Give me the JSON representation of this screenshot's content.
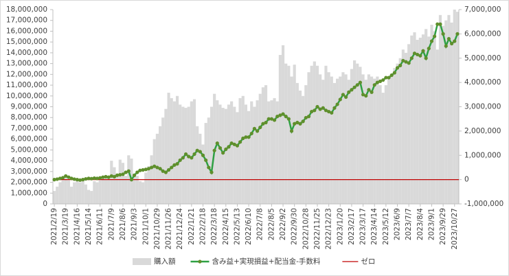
{
  "chart_data": {
    "type": "bar_line",
    "categories": [
      "2021/2/19",
      null,
      null,
      null,
      "2021/3/19",
      null,
      null,
      null,
      "2021/4/16",
      null,
      null,
      null,
      "2021/5/14",
      null,
      null,
      null,
      "2021/6/11",
      null,
      null,
      null,
      "2021/7/9",
      null,
      null,
      null,
      "2021/8/6",
      null,
      null,
      null,
      "2021/9/3",
      null,
      null,
      null,
      "2021/10/1",
      null,
      null,
      null,
      "2021/10/29",
      null,
      null,
      null,
      "2021/11/26",
      null,
      null,
      null,
      "2021/12/24",
      null,
      null,
      null,
      "2022/1/21",
      null,
      null,
      null,
      "2022/2/18",
      null,
      null,
      null,
      "2022/3/18",
      null,
      null,
      null,
      "2022/4/15",
      null,
      null,
      null,
      "2022/5/13",
      null,
      null,
      null,
      "2022/6/10",
      null,
      null,
      null,
      "2022/7/8",
      null,
      null,
      null,
      "2022/8/5",
      null,
      null,
      null,
      "2022/9/2",
      null,
      null,
      null,
      "2022/9/30",
      null,
      null,
      null,
      "2022/10/28",
      null,
      null,
      null,
      "2022/11/25",
      null,
      null,
      null,
      "2022/12/23",
      null,
      null,
      null,
      "2023/1/20",
      null,
      null,
      null,
      "2023/2/17",
      null,
      null,
      null,
      "2023/3/17",
      null,
      null,
      null,
      "2023/4/14",
      null,
      null,
      null,
      "2023/5/12",
      null,
      null,
      null,
      "2023/6/9",
      null,
      null,
      null,
      "2023/7/7",
      null,
      null,
      null,
      "2023/8/4",
      null,
      null,
      null,
      "2023/9/1",
      null,
      null,
      null,
      "2023/9/29",
      null,
      null,
      null,
      "2023/10/27",
      null
    ],
    "series": [
      {
        "name": "購入額",
        "type": "bar",
        "color": "#d9d9d9",
        "values": [
          1200000,
          1600000,
          2000000,
          2200000,
          2500000,
          2200000,
          1600000,
          2000000,
          2200000,
          2000000,
          2100000,
          1800000,
          1300000,
          1200000,
          2100000,
          2000000,
          2200000,
          2500000,
          2600000,
          2400000,
          4000000,
          3400000,
          2800000,
          4100000,
          3800000,
          2600000,
          4500000,
          4200000,
          2800000,
          2600000,
          2100000,
          2000000,
          2900000,
          3500000,
          4500000,
          6000000,
          6500000,
          7200000,
          8000000,
          8800000,
          10300000,
          9800000,
          9500000,
          10000000,
          9200000,
          9000000,
          8900000,
          9000000,
          9500000,
          9700000,
          7200000,
          6500000,
          5500000,
          7500000,
          8000000,
          9000000,
          10200000,
          9600000,
          9200000,
          8900000,
          8800000,
          9200000,
          9500000,
          9000000,
          8500000,
          9800000,
          10000000,
          9200000,
          8600000,
          9500000,
          9000000,
          9600000,
          10200000,
          10800000,
          11000000,
          9500000,
          9600000,
          9800000,
          9500000,
          13800000,
          14700000,
          13000000,
          12800000,
          11800000,
          12900000,
          11200000,
          10500000,
          10000000,
          11000000,
          12200000,
          12800000,
          13200000,
          12800000,
          12000000,
          11500000,
          12800000,
          12200000,
          11800000,
          11200000,
          11600000,
          11800000,
          12200000,
          12000000,
          11500000,
          12500000,
          13300000,
          13000000,
          12700000,
          12000000,
          11500000,
          12000000,
          11800000,
          11600000,
          11800000,
          11000000,
          10300000,
          11000000,
          11600000,
          12000000,
          12600000,
          13000000,
          13500000,
          14300000,
          14000000,
          14800000,
          15600000,
          15900000,
          15200000,
          15400000,
          15700000,
          16200000,
          15500000,
          16600000,
          16000000,
          14300000,
          17500000,
          16500000,
          17000000,
          17500000,
          16800000,
          18000000,
          17800000
        ]
      },
      {
        "name": "含み益+実現損益+配当金-手数料",
        "type": "line",
        "axis": "y2",
        "color": "#2ea043",
        "marker_color": "#5f8f2c",
        "values": [
          0,
          20000,
          50000,
          80000,
          150000,
          100000,
          50000,
          20000,
          0,
          -20000,
          0,
          30000,
          50000,
          40000,
          60000,
          50000,
          70000,
          100000,
          120000,
          100000,
          150000,
          120000,
          180000,
          200000,
          220000,
          300000,
          350000,
          0,
          180000,
          300000,
          380000,
          400000,
          420000,
          450000,
          500000,
          550000,
          500000,
          450000,
          350000,
          300000,
          400000,
          500000,
          600000,
          650000,
          800000,
          900000,
          1050000,
          950000,
          900000,
          1050000,
          1200000,
          1150000,
          1000000,
          800000,
          500000,
          300000,
          1200000,
          1500000,
          1300000,
          1100000,
          1250000,
          1350000,
          1500000,
          1450000,
          1400000,
          1550000,
          1700000,
          1750000,
          1750000,
          1900000,
          2100000,
          2000000,
          2150000,
          2300000,
          2350000,
          2500000,
          2500000,
          2450000,
          2600000,
          2650000,
          2700000,
          2600000,
          2500000,
          2000000,
          2300000,
          2350000,
          2300000,
          2400000,
          2550000,
          2600000,
          2800000,
          2850000,
          3000000,
          2900000,
          2950000,
          2850000,
          2800000,
          2750000,
          2950000,
          3100000,
          3300000,
          3500000,
          3400000,
          3600000,
          3700000,
          3800000,
          3900000,
          4000000,
          3500000,
          3450000,
          3700000,
          3600000,
          3900000,
          4000000,
          4050000,
          4100000,
          4200000,
          4200000,
          4300000,
          4400000,
          4600000,
          4700000,
          4900000,
          4850000,
          4800000,
          5000000,
          5200000,
          5150000,
          5100000,
          5300000,
          5000000,
          5400000,
          5700000,
          5900000,
          6400000,
          6400000,
          6000000,
          5500000,
          5800000,
          5600000,
          5700000,
          6000000
        ]
      }
    ],
    "reference_line": {
      "name": "ゼロ",
      "value": 0,
      "axis": "y2",
      "color": "#c00000"
    },
    "ylim": [
      0,
      18000000
    ],
    "yticks": [
      0,
      {
        "value": 1000000,
        "label": "1,000,000"
      },
      {
        "value": 2000000,
        "label": "2,000,000"
      },
      {
        "value": 3000000,
        "label": "3,000,000"
      },
      {
        "value": 4000000,
        "label": "4,000,000"
      },
      {
        "value": 5000000,
        "label": "5,000,000"
      },
      {
        "value": 6000000,
        "label": "6,000,000"
      },
      {
        "value": 7000000,
        "label": "7,000,000"
      },
      {
        "value": 8000000,
        "label": "8,000,000"
      },
      {
        "value": 9000000,
        "label": "9,000,000"
      },
      {
        "value": 10000000,
        "label": "10,000,000"
      },
      {
        "value": 11000000,
        "label": "11,000,000"
      },
      {
        "value": 12000000,
        "label": "12,000,000"
      },
      {
        "value": 13000000,
        "label": "13,000,000"
      },
      {
        "value": 14000000,
        "label": "14,000,000"
      },
      {
        "value": 15000000,
        "label": "15,000,000"
      },
      {
        "value": 16000000,
        "label": "16,000,000"
      },
      {
        "value": 17000000,
        "label": "17,000,000"
      },
      {
        "value": 18000000,
        "label": "18,000,000"
      }
    ],
    "y2lim": [
      -1000000,
      7000000
    ],
    "y2ticks": [
      {
        "value": -1000000,
        "label": "-1,000,000"
      },
      0,
      {
        "value": 1000000,
        "label": "1,000,000"
      },
      {
        "value": 2000000,
        "label": "2,000,000"
      },
      {
        "value": 3000000,
        "label": "3,000,000"
      },
      {
        "value": 4000000,
        "label": "4,000,000"
      },
      {
        "value": 5000000,
        "label": "5,000,000"
      },
      {
        "value": 6000000,
        "label": "6,000,000"
      },
      {
        "value": 7000000,
        "label": "7,000,000"
      }
    ],
    "grid": false,
    "legend": "bottom"
  }
}
